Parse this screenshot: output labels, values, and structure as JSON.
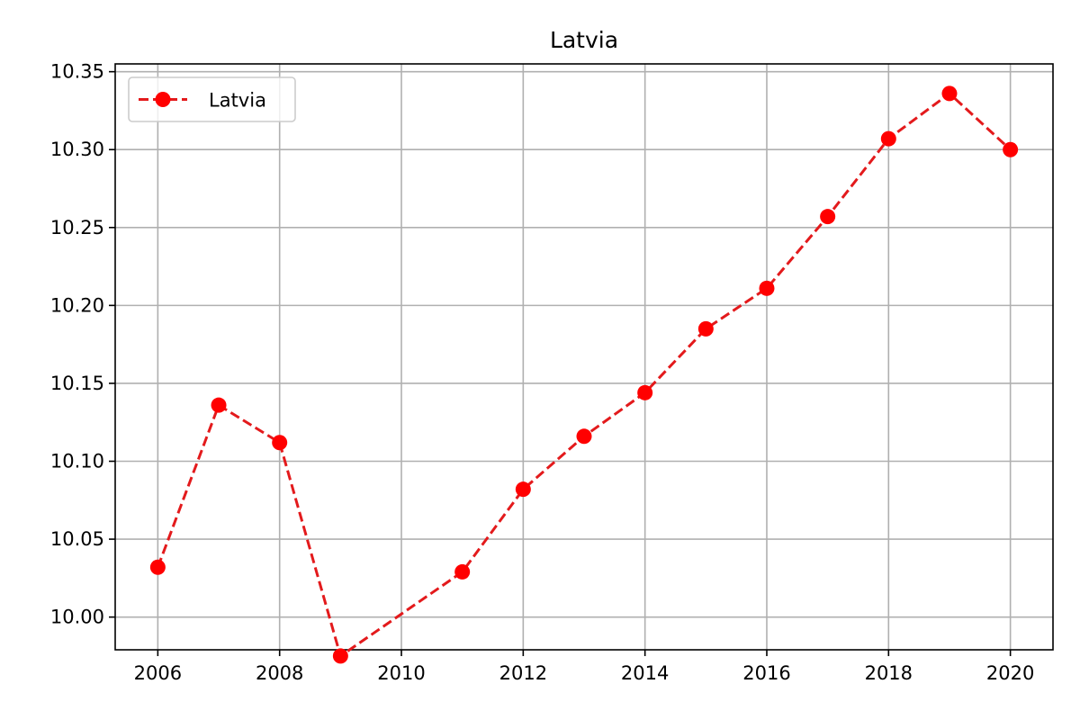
{
  "chart_data": {
    "type": "line",
    "title": "Latvia",
    "xlabel": "",
    "ylabel": "",
    "x_ticks": [
      2006,
      2008,
      2010,
      2012,
      2014,
      2016,
      2018,
      2020
    ],
    "y_ticks": [
      "10.00",
      "10.05",
      "10.10",
      "10.15",
      "10.20",
      "10.25",
      "10.30",
      "10.35"
    ],
    "xlim": [
      2005.3,
      2020.7
    ],
    "ylim": [
      9.979,
      10.355
    ],
    "grid": true,
    "legend_position": "upper-left",
    "series": [
      {
        "name": "Latvia",
        "color": "#ff0000",
        "line_color": "#e31a1c",
        "line_style": "dashed",
        "marker": "circle",
        "points": [
          {
            "x": 2006,
            "y": 10.032
          },
          {
            "x": 2007,
            "y": 10.136
          },
          {
            "x": 2008,
            "y": 10.112
          },
          {
            "x": 2009,
            "y": 9.975
          },
          {
            "x": 2011,
            "y": 10.029
          },
          {
            "x": 2012,
            "y": 10.082
          },
          {
            "x": 2013,
            "y": 10.116
          },
          {
            "x": 2014,
            "y": 10.144
          },
          {
            "x": 2015,
            "y": 10.185
          },
          {
            "x": 2016,
            "y": 10.211
          },
          {
            "x": 2017,
            "y": 10.257
          },
          {
            "x": 2018,
            "y": 10.307
          },
          {
            "x": 2019,
            "y": 10.336
          },
          {
            "x": 2020,
            "y": 10.3
          }
        ]
      }
    ]
  }
}
